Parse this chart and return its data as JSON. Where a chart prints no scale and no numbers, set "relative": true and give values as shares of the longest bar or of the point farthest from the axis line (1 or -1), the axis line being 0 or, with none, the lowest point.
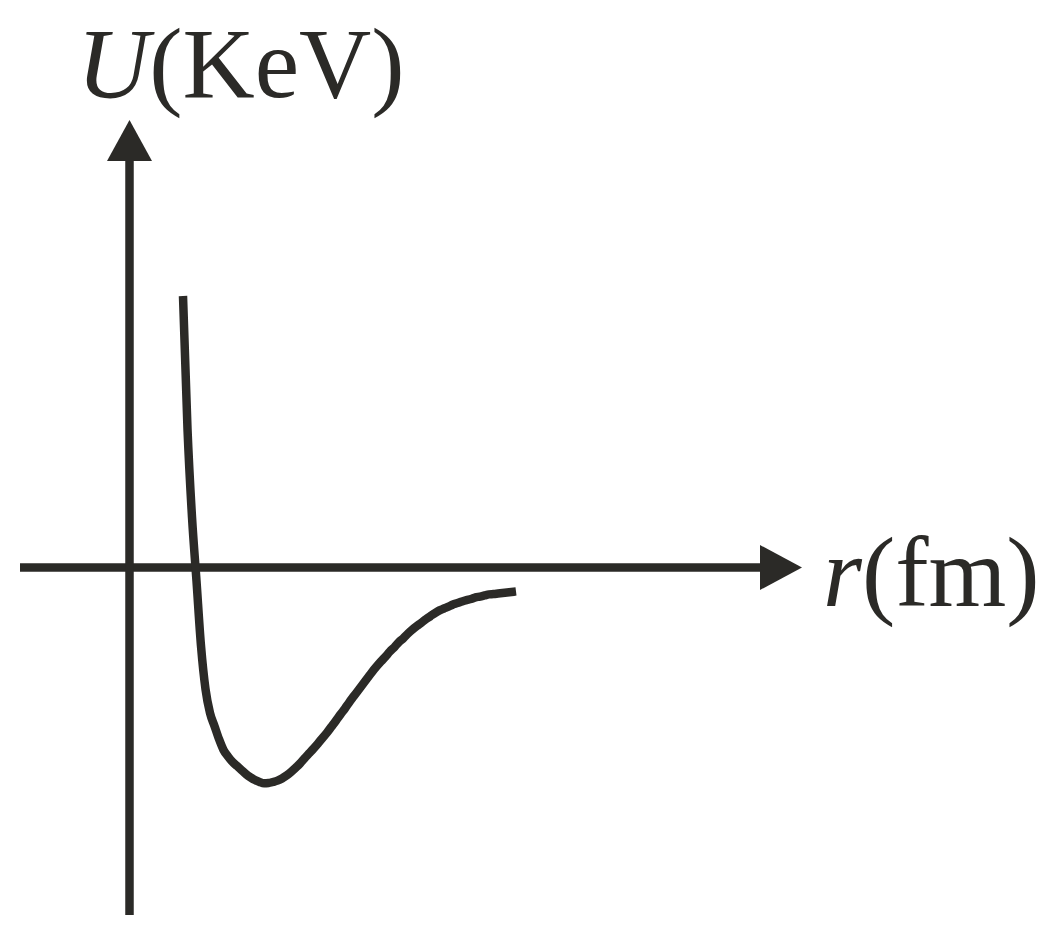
{
  "chart_data": {
    "type": "line",
    "xlabel": "r(fm)",
    "ylabel": "U(KeV)",
    "relative": true,
    "tick_labels": false,
    "color": "#2b2a27",
    "categories": [
      null,
      null,
      null,
      null,
      null,
      null,
      null,
      null,
      null,
      null,
      null,
      null,
      null,
      null,
      null,
      null,
      null,
      null,
      null,
      null,
      null,
      null,
      null,
      null,
      null,
      null,
      null,
      null,
      null,
      null,
      null,
      null,
      null,
      null,
      null,
      null,
      null,
      null,
      null,
      null,
      null,
      null,
      null,
      null,
      null,
      null,
      null,
      null,
      null,
      null,
      null,
      null,
      null,
      null,
      null,
      null,
      null,
      null,
      null,
      null,
      null,
      null,
      null,
      null,
      null,
      null,
      null,
      null,
      null,
      null,
      null,
      null,
      null,
      null,
      null
    ],
    "values": [
      1,
      0.51,
      0.186,
      -0.05,
      -0.289,
      -0.448,
      -0.536,
      -0.584,
      -0.632,
      -0.672,
      -0.696,
      -0.716,
      -0.731,
      -0.746,
      -0.761,
      -0.773,
      -0.783,
      -0.79,
      -0.795,
      -0.794,
      -0.79,
      -0.785,
      -0.777,
      -0.766,
      -0.753,
      -0.738,
      -0.722,
      -0.703,
      -0.685,
      -0.667,
      -0.648,
      -0.628,
      -0.608,
      -0.586,
      -0.564,
      -0.541,
      -0.519,
      -0.495,
      -0.473,
      -0.451,
      -0.429,
      -0.407,
      -0.385,
      -0.365,
      -0.346,
      -0.328,
      -0.309,
      -0.293,
      -0.274,
      -0.26,
      -0.243,
      -0.228,
      -0.215,
      -0.203,
      -0.19,
      -0.179,
      -0.168,
      -0.158,
      -0.151,
      -0.144,
      -0.136,
      -0.131,
      -0.125,
      -0.12,
      -0.116,
      -0.11,
      -0.107,
      -0.103,
      -0.099,
      -0.098,
      -0.096,
      -0.094,
      -0.092,
      -0.09,
      -0.088
    ]
  }
}
